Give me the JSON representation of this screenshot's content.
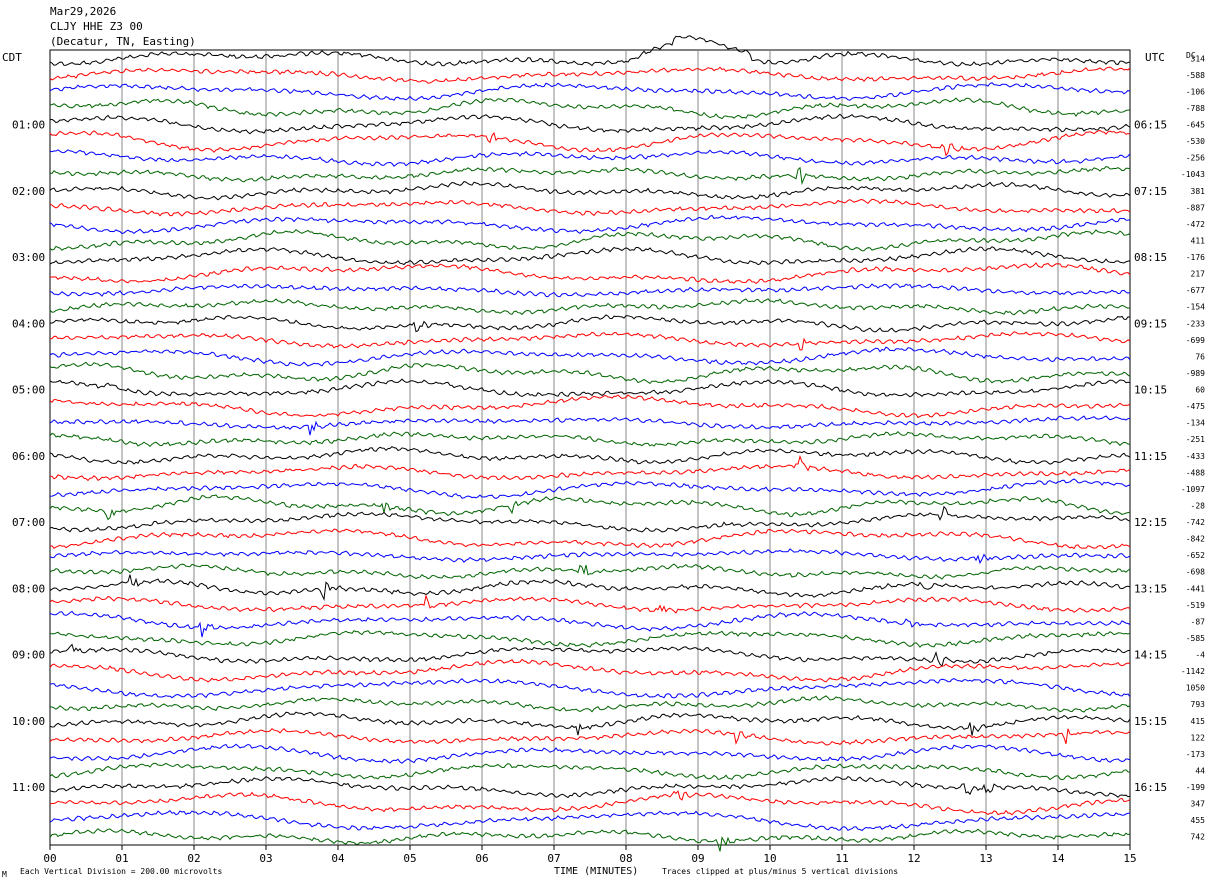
{
  "header": {
    "date": "Mar29,2026",
    "station": "CLJY HHE Z3 00",
    "location": "(Decatur, TN, Easting)"
  },
  "left_tz": "CDT",
  "right_tz": "UTC",
  "dc_label": "DC",
  "footer": {
    "scale_note": "Each Vertical Division =  200.00 microvolts",
    "xlabel": "TIME (MINUTES)",
    "clip_note": "Traces clipped at plus/minus 5 vertical divisions",
    "corner_mark": "M"
  },
  "chart_data": {
    "type": "line",
    "kind": "helicorder",
    "x": {
      "label": "TIME (MINUTES)",
      "min": 0,
      "max": 15,
      "ticks": [
        "00",
        "01",
        "02",
        "03",
        "04",
        "05",
        "06",
        "07",
        "08",
        "09",
        "10",
        "11",
        "12",
        "13",
        "14",
        "15"
      ]
    },
    "trace_count": 48,
    "trace_colors": [
      "#000000",
      "#ff0000",
      "#0000ff",
      "#006400"
    ],
    "left_hour_labels": [
      {
        "label": "01:00",
        "trace": 4
      },
      {
        "label": "02:00",
        "trace": 8
      },
      {
        "label": "03:00",
        "trace": 12
      },
      {
        "label": "04:00",
        "trace": 16
      },
      {
        "label": "05:00",
        "trace": 20
      },
      {
        "label": "06:00",
        "trace": 24
      },
      {
        "label": "07:00",
        "trace": 28
      },
      {
        "label": "08:00",
        "trace": 32
      },
      {
        "label": "09:00",
        "trace": 36
      },
      {
        "label": "10:00",
        "trace": 40
      },
      {
        "label": "11:00",
        "trace": 44
      }
    ],
    "right_hour_labels": [
      {
        "label": "06:15",
        "trace": 4
      },
      {
        "label": "07:15",
        "trace": 8
      },
      {
        "label": "08:15",
        "trace": 12
      },
      {
        "label": "09:15",
        "trace": 16
      },
      {
        "label": "10:15",
        "trace": 20
      },
      {
        "label": "11:15",
        "trace": 24
      },
      {
        "label": "12:15",
        "trace": 28
      },
      {
        "label": "13:15",
        "trace": 32
      },
      {
        "label": "14:15",
        "trace": 36
      },
      {
        "label": "15:15",
        "trace": 40
      },
      {
        "label": "16:15",
        "trace": 44
      }
    ],
    "dc_offsets": [
      "314",
      "-588",
      "-106",
      "-788",
      "-645",
      "-530",
      "-256",
      "-1043",
      "381",
      "-887",
      "-472",
      "411",
      "-176",
      "217",
      "-677",
      "-154",
      "-233",
      "-699",
      "76",
      "-989",
      "60",
      "-475",
      "-134",
      "-251",
      "-433",
      "-488",
      "-1097",
      "-28",
      "-742",
      "-842",
      "-652",
      "-698",
      "-441",
      "-519",
      "-87",
      "-585",
      "-4",
      "-1142",
      "1050",
      "793",
      "415",
      "122",
      "-173",
      "44",
      "-199",
      "347",
      "455",
      "742"
    ],
    "events": [
      {
        "trace": 0,
        "x_min": 8.5,
        "kind": "transient"
      },
      {
        "trace": 5,
        "x_min": 6.1
      },
      {
        "trace": 5,
        "x_min": 12.4
      },
      {
        "trace": 7,
        "x_min": 10.4
      },
      {
        "trace": 16,
        "x_min": 5.05
      },
      {
        "trace": 17,
        "x_min": 10.4
      },
      {
        "trace": 20,
        "x_min": 0.8
      },
      {
        "trace": 22,
        "x_min": 3.6
      },
      {
        "trace": 25,
        "x_min": 10.4
      },
      {
        "trace": 27,
        "x_min": 0.8
      },
      {
        "trace": 27,
        "x_min": 4.6
      },
      {
        "trace": 27,
        "x_min": 6.4
      },
      {
        "trace": 28,
        "x_min": 9.4
      },
      {
        "trace": 28,
        "x_min": 12.4
      },
      {
        "trace": 30,
        "x_min": 12.9
      },
      {
        "trace": 31,
        "x_min": 7.4
      },
      {
        "trace": 32,
        "x_min": 1.1
      },
      {
        "trace": 32,
        "x_min": 3.8
      },
      {
        "trace": 32,
        "x_min": 12.1
      },
      {
        "trace": 33,
        "x_min": 5.2
      },
      {
        "trace": 33,
        "x_min": 8.5
      },
      {
        "trace": 34,
        "x_min": 2.1
      },
      {
        "trace": 34,
        "x_min": 11.9
      },
      {
        "trace": 36,
        "x_min": 0.3
      },
      {
        "trace": 36,
        "x_min": 12.3
      },
      {
        "trace": 40,
        "x_min": 7.3
      },
      {
        "trace": 40,
        "x_min": 12.8
      },
      {
        "trace": 41,
        "x_min": 9.5
      },
      {
        "trace": 41,
        "x_min": 14.1
      },
      {
        "trace": 44,
        "x_min": 12.7
      },
      {
        "trace": 44,
        "x_min": 13.0
      },
      {
        "trace": 45,
        "x_min": 8.7
      },
      {
        "trace": 47,
        "x_min": 9.3
      }
    ]
  }
}
